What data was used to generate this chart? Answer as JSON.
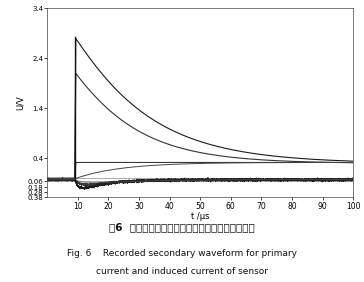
{
  "title_cn": "图6  故障支路漏电流及传感器感应电流的实测波形",
  "title_en1": "Fig. 6    Recorded secondary waveform for primary",
  "title_en2": "current and induced current of sensor",
  "xlabel": "t /μs",
  "ylabel": "U/V",
  "ylim_top": 3.4,
  "ylim_bottom": -0.38,
  "xlim_left": 0,
  "xlim_right": 100,
  "ytick_vals": [
    3.4,
    2.4,
    1.4,
    0.4,
    -0.06,
    -0.18,
    -0.28,
    -0.38
  ],
  "ytick_labels": [
    "3.4",
    "2.4",
    "1.4",
    "0.4",
    "0.06",
    "0.18",
    "0.28",
    "0.38"
  ],
  "xticks": [
    10,
    20,
    30,
    40,
    50,
    60,
    70,
    80,
    90,
    100
  ],
  "background_color": "#ffffff",
  "line_color_main": "#111111"
}
